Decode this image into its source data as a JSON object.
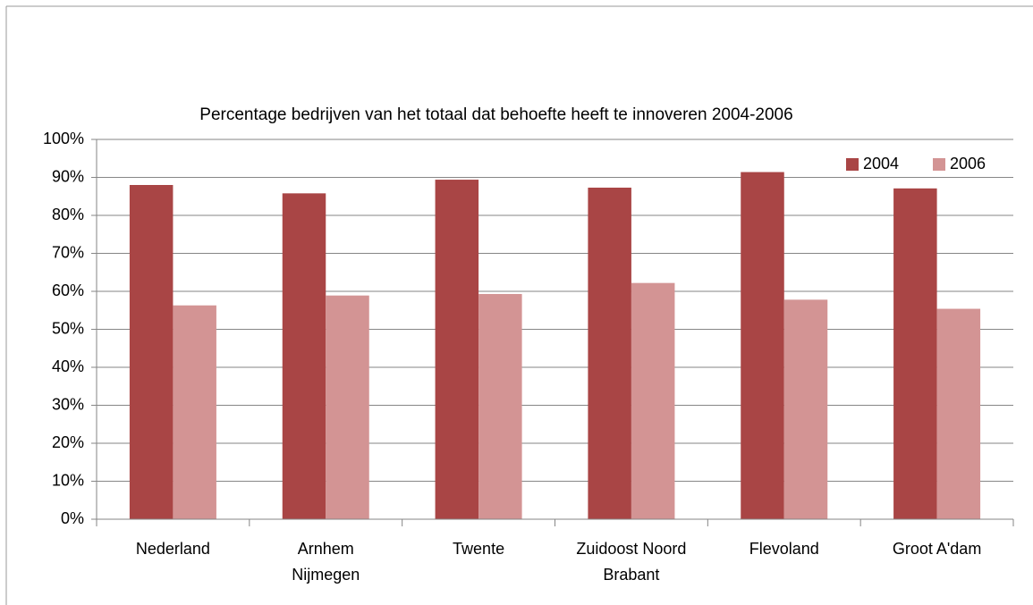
{
  "chart_data": {
    "type": "bar",
    "title": "Percentage bedrijven van het totaal dat behoefte heeft te innoveren 2004-2006",
    "categories": [
      "Nederland",
      "Arnhem Nijmegen",
      "Twente",
      "Zuidoost Noord Brabant",
      "Flevoland",
      "Groot A'dam"
    ],
    "series": [
      {
        "name": "2004",
        "color": "#a94545",
        "values": [
          88.0,
          85.8,
          89.4,
          87.3,
          91.4,
          87.1
        ]
      },
      {
        "name": "2006",
        "color": "#d39494",
        "values": [
          56.3,
          58.9,
          59.3,
          62.2,
          57.8,
          55.4
        ]
      }
    ],
    "ylim": [
      0,
      100
    ],
    "yticks": [
      {
        "value": 0,
        "label": "0%"
      },
      {
        "value": 10,
        "label": "10%"
      },
      {
        "value": 20,
        "label": "20%"
      },
      {
        "value": 30,
        "label": "30%"
      },
      {
        "value": 40,
        "label": "40%"
      },
      {
        "value": 50,
        "label": "50%"
      },
      {
        "value": 60,
        "label": "60%"
      },
      {
        "value": 70,
        "label": "70%"
      },
      {
        "value": 80,
        "label": "80%"
      },
      {
        "value": 90,
        "label": "90%"
      },
      {
        "value": 100,
        "label": "100%"
      }
    ],
    "grid": true,
    "legend": "top-right"
  }
}
